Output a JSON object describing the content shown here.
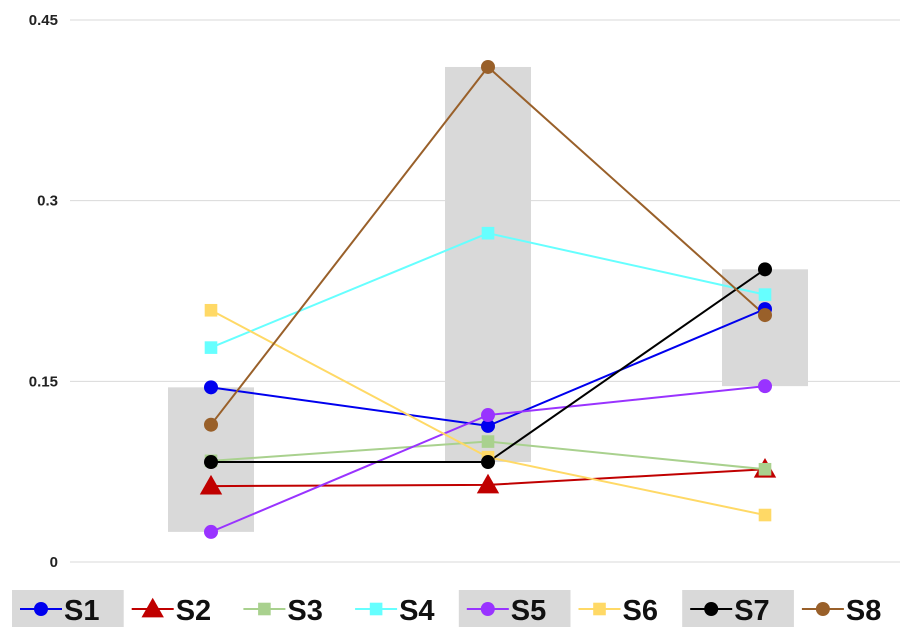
{
  "chart_data": {
    "type": "line",
    "categories": [
      "",
      "",
      ""
    ],
    "ylim": [
      0,
      0.45
    ],
    "yticks": [
      "0",
      "0.15",
      "0.3",
      "0.45"
    ],
    "ytick_values": [
      0,
      0.15,
      0.3,
      0.45
    ],
    "grid": true,
    "legend_placement": "bottom",
    "range_bars": [
      {
        "low": 0.025,
        "high": 0.145
      },
      {
        "low": 0.083,
        "high": 0.411
      },
      {
        "low": 0.146,
        "high": 0.243
      }
    ],
    "series": [
      {
        "name": "S1",
        "values": [
          0.145,
          0.113,
          0.21
        ],
        "color": "#0000ee",
        "marker": "circle",
        "legend_highlight": true
      },
      {
        "name": "S2",
        "values": [
          0.063,
          0.064,
          0.077
        ],
        "color": "#c00000",
        "marker": "triangle",
        "legend_highlight": false
      },
      {
        "name": "S3",
        "values": [
          0.084,
          0.1,
          0.077
        ],
        "color": "#a9d18e",
        "marker": "square",
        "legend_highlight": false
      },
      {
        "name": "S4",
        "values": [
          0.178,
          0.273,
          0.222
        ],
        "color": "#66ffff",
        "marker": "square",
        "legend_highlight": false
      },
      {
        "name": "S5",
        "values": [
          0.025,
          0.122,
          0.146
        ],
        "color": "#9933ff",
        "marker": "circle",
        "legend_highlight": true
      },
      {
        "name": "S6",
        "values": [
          0.209,
          0.087,
          0.039
        ],
        "color": "#ffd966",
        "marker": "square",
        "legend_highlight": false
      },
      {
        "name": "S7",
        "values": [
          0.083,
          0.083,
          0.243
        ],
        "color": "#000000",
        "marker": "circle",
        "legend_highlight": true
      },
      {
        "name": "S8",
        "values": [
          0.114,
          0.411,
          0.205
        ],
        "color": "#99602a",
        "marker": "circle",
        "legend_highlight": false
      }
    ]
  }
}
